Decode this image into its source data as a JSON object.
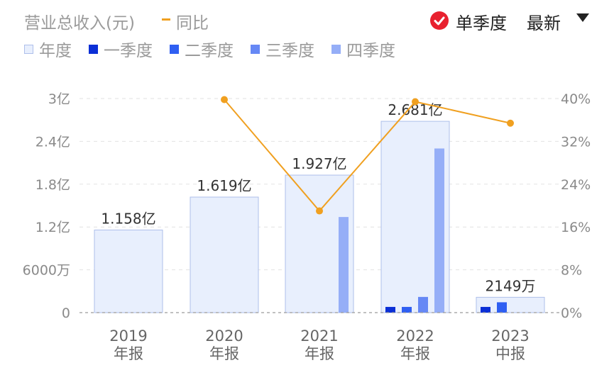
{
  "header": {
    "title": "营业总收入(元)",
    "yoy_label": "同比",
    "single_quarter_label": "单季度",
    "sort_label": "最新"
  },
  "icons": {
    "check": "check-circle-icon",
    "dropdown": "caret-down-icon"
  },
  "colors": {
    "annual": "#e8effd",
    "annual_border": "#aebfea",
    "q1": "#0b2fd6",
    "q2": "#2f5ff2",
    "q3": "#6688f5",
    "q4": "#95aef7",
    "yoy": "#f0a020",
    "check": "#e8212f"
  },
  "legend": [
    {
      "label": "年度",
      "color": "#e8effd",
      "border": "#aebfea"
    },
    {
      "label": "一季度",
      "color": "#0b2fd6"
    },
    {
      "label": "二季度",
      "color": "#2f5ff2"
    },
    {
      "label": "三季度",
      "color": "#6688f5"
    },
    {
      "label": "四季度",
      "color": "#95aef7"
    }
  ],
  "chart_data": {
    "type": "bar",
    "categories": [
      "2019\n年报",
      "2020\n年报",
      "2021\n年报",
      "2022\n年报",
      "2023\n中报"
    ],
    "ylim": [
      0,
      300000000
    ],
    "y2lim": [
      0,
      40
    ],
    "y_ticks": [
      {
        "value": 0,
        "label": "0"
      },
      {
        "value": 60000000,
        "label": "6000万"
      },
      {
        "value": 120000000,
        "label": "1.2亿"
      },
      {
        "value": 180000000,
        "label": "1.8亿"
      },
      {
        "value": 240000000,
        "label": "2.4亿"
      },
      {
        "value": 300000000,
        "label": "3亿"
      }
    ],
    "y2_ticks": [
      {
        "value": 0,
        "label": "0%"
      },
      {
        "value": 8,
        "label": "8%"
      },
      {
        "value": 16,
        "label": "16%"
      },
      {
        "value": 24,
        "label": "24%"
      },
      {
        "value": 32,
        "label": "32%"
      },
      {
        "value": 40,
        "label": "40%"
      }
    ],
    "series": [
      {
        "name": "年度",
        "values": [
          115800000,
          161900000,
          192700000,
          268100000,
          21490000
        ],
        "labels": [
          "1.158亿",
          "1.619亿",
          "1.927亿",
          "2.681亿",
          "2149万"
        ]
      },
      {
        "name": "一季度",
        "values": [
          null,
          null,
          null,
          8000000,
          8000000
        ]
      },
      {
        "name": "二季度",
        "values": [
          null,
          null,
          null,
          8000000,
          14500000
        ]
      },
      {
        "name": "三季度",
        "values": [
          null,
          null,
          null,
          22000000,
          null
        ]
      },
      {
        "name": "四季度",
        "values": [
          null,
          null,
          134000000,
          230000000,
          null
        ]
      },
      {
        "name": "同比",
        "axis": "right",
        "values": [
          null,
          39.8,
          19.0,
          39.4,
          35.4
        ]
      }
    ],
    "grid": true,
    "legend_position": "top-left"
  }
}
